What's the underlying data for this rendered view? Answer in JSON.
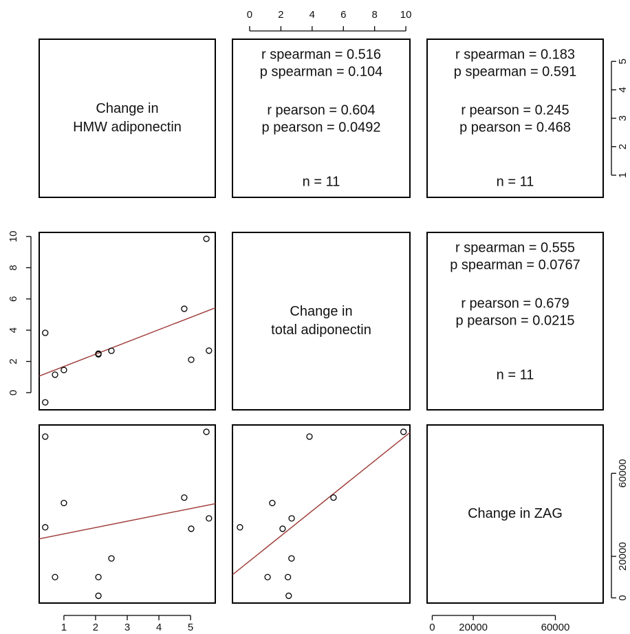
{
  "chart_data": {
    "type": "scatter_matrix",
    "point_color": "#000000",
    "fit_color": "#a0403c",
    "variables": [
      {
        "label": [
          "Change in",
          "HMW adiponectin"
        ],
        "values": [
          0.41,
          0.41,
          0.72,
          1.0,
          2.09,
          2.09,
          2.5,
          4.8,
          5.02,
          5.5,
          5.58
        ],
        "lim": [
          0.22,
          5.78
        ],
        "ticks": [
          1,
          2,
          3,
          4,
          5
        ]
      },
      {
        "label": [
          "Change in",
          "total adiponectin"
        ],
        "values": [
          3.83,
          -0.62,
          1.15,
          1.45,
          2.45,
          2.5,
          2.68,
          5.37,
          2.11,
          9.85,
          2.69
        ],
        "lim": [
          -1.1,
          10.26
        ],
        "ticks": [
          0,
          2,
          4,
          6,
          8,
          10
        ]
      },
      {
        "label": [
          "Change in ZAG"
        ],
        "values": [
          77700,
          34000,
          10000,
          45700,
          10000,
          1000,
          19000,
          48300,
          33300,
          80000,
          38300
        ],
        "lim": [
          -2500,
          83300
        ],
        "ticks": [
          0,
          20000,
          60000
        ]
      }
    ],
    "stats": [
      {
        "spearman": [
          "r spearman = 0.516",
          "p spearman = 0.104"
        ],
        "pearson": [
          "r pearson = 0.604",
          "p pearson = 0.0492"
        ],
        "n": "n = 11"
      },
      {
        "spearman": [
          "r spearman = 0.183",
          "p spearman = 0.591"
        ],
        "pearson": [
          "r pearson = 0.245",
          "p pearson = 0.468"
        ],
        "n": "n = 11"
      },
      {
        "spearman": [
          "r spearman = 0.555",
          "p spearman = 0.0767"
        ],
        "pearson": [
          "r pearson = 0.679",
          "p pearson = 0.0215"
        ],
        "n": "n = 11"
      }
    ]
  }
}
